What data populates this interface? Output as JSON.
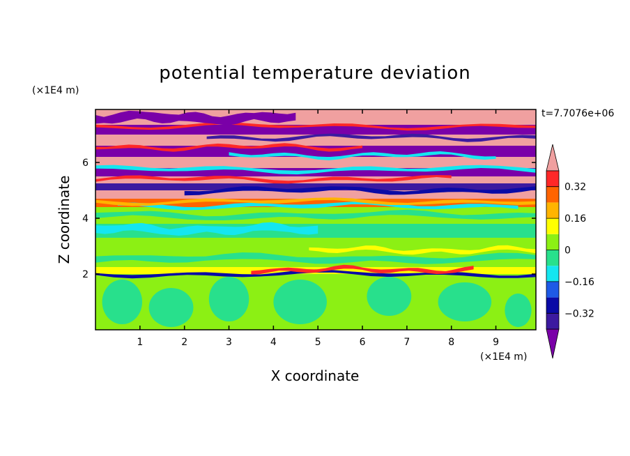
{
  "chart_data": {
    "type": "heatmap",
    "title": "potential temperature deviation",
    "xlabel": "X coordinate",
    "ylabel": "Z coordinate",
    "x_unit": "(×1E4 m)",
    "y_unit": "(×1E4 m)",
    "time_label": "t=7.7076e+06",
    "xlim": [
      0,
      9.9
    ],
    "ylim": [
      0,
      7.9
    ],
    "x_ticks": [
      1,
      2,
      3,
      4,
      5,
      6,
      7,
      8,
      9
    ],
    "y_ticks": [
      2,
      4,
      6
    ],
    "grid": false,
    "colorbar": {
      "extend": "both",
      "levels": [
        -0.4,
        -0.32,
        -0.24,
        -0.16,
        -0.08,
        0,
        0.08,
        0.16,
        0.24,
        0.32,
        0.4
      ],
      "colors": [
        "#7a00a8",
        "#3c1aa0",
        "#0a0aa6",
        "#1e5ae6",
        "#14e6f0",
        "#28e08c",
        "#8cf014",
        "#ffff00",
        "#ffb400",
        "#ff6400",
        "#ff2828",
        "#f0a0a0"
      ],
      "tick_labels": [
        "0.32",
        "0.16",
        "0",
        "−0.16",
        "−0.32"
      ],
      "tick_values": [
        0.32,
        0.16,
        0,
        -0.16,
        -0.32
      ]
    },
    "bands": [
      {
        "z0": 0.0,
        "z1": 2.0,
        "color": "#8cf014"
      },
      {
        "z0": 2.0,
        "z1": 2.25,
        "color": "#ffff00"
      },
      {
        "z0": 2.25,
        "z1": 3.3,
        "color": "#8cf014"
      },
      {
        "z0": 3.3,
        "z1": 3.8,
        "color": "#28e08c"
      },
      {
        "z0": 3.8,
        "z1": 4.4,
        "color": "#8cf014"
      },
      {
        "z0": 4.4,
        "z1": 4.7,
        "color": "#ff6400"
      },
      {
        "z0": 4.7,
        "z1": 5.0,
        "color": "#f0a0a0"
      },
      {
        "z0": 5.0,
        "z1": 5.25,
        "color": "#3c1aa0"
      },
      {
        "z0": 5.25,
        "z1": 5.5,
        "color": "#f0a0a0"
      },
      {
        "z0": 5.5,
        "z1": 5.8,
        "color": "#7a00a8"
      },
      {
        "z0": 5.8,
        "z1": 6.2,
        "color": "#f0a0a0"
      },
      {
        "z0": 6.2,
        "z1": 6.6,
        "color": "#7a00a8"
      },
      {
        "z0": 6.6,
        "z1": 7.0,
        "color": "#f0a0a0"
      },
      {
        "z0": 7.0,
        "z1": 7.35,
        "color": "#7a00a8"
      },
      {
        "z0": 7.35,
        "z1": 7.9,
        "color": "#f0a0a0"
      }
    ],
    "streaks": [
      {
        "x0": 0.0,
        "x1": 9.9,
        "z": 2.0,
        "dz": 0.06,
        "color": "#0a0aa6"
      },
      {
        "x0": 3.5,
        "x1": 8.5,
        "z": 2.15,
        "dz": 0.07,
        "color": "#ff2828"
      },
      {
        "x0": 0.0,
        "x1": 9.9,
        "z": 2.55,
        "dz": 0.12,
        "color": "#28e08c"
      },
      {
        "x0": 4.8,
        "x1": 9.9,
        "z": 2.85,
        "dz": 0.08,
        "color": "#ffff00"
      },
      {
        "x0": 0.0,
        "x1": 5.0,
        "z": 3.6,
        "dz": 0.15,
        "color": "#14e6f0"
      },
      {
        "x0": 0.0,
        "x1": 9.9,
        "z": 4.1,
        "dz": 0.1,
        "color": "#28e08c"
      },
      {
        "x0": 0.5,
        "x1": 9.5,
        "z": 4.45,
        "dz": 0.07,
        "color": "#14e6f0"
      },
      {
        "x0": 0.0,
        "x1": 9.9,
        "z": 4.6,
        "dz": 0.06,
        "color": "#ffb400"
      },
      {
        "x0": 2.0,
        "x1": 9.9,
        "z": 5.0,
        "dz": 0.08,
        "color": "#0a0aa6"
      },
      {
        "x0": 0.0,
        "x1": 8.0,
        "z": 5.4,
        "dz": 0.06,
        "color": "#ff2828"
      },
      {
        "x0": 0.0,
        "x1": 9.9,
        "z": 5.75,
        "dz": 0.07,
        "color": "#14e6f0"
      },
      {
        "x0": 3.0,
        "x1": 9.0,
        "z": 6.25,
        "dz": 0.06,
        "color": "#14e6f0"
      },
      {
        "x0": 0.0,
        "x1": 6.0,
        "z": 6.55,
        "dz": 0.06,
        "color": "#ff2828"
      },
      {
        "x0": 2.5,
        "x1": 9.9,
        "z": 6.9,
        "dz": 0.06,
        "color": "#3c1aa0"
      },
      {
        "x0": 0.0,
        "x1": 9.9,
        "z": 7.3,
        "dz": 0.05,
        "color": "#ff2828"
      },
      {
        "x0": 0.0,
        "x1": 4.5,
        "z": 7.6,
        "dz": 0.18,
        "color": "#7a00a8"
      }
    ],
    "blobs": [
      {
        "x": 0.6,
        "z": 1.0,
        "rx": 0.45,
        "rz": 0.8,
        "color": "#28e08c"
      },
      {
        "x": 1.7,
        "z": 0.8,
        "rx": 0.5,
        "rz": 0.7,
        "color": "#28e08c"
      },
      {
        "x": 3.0,
        "z": 1.1,
        "rx": 0.45,
        "rz": 0.8,
        "color": "#28e08c"
      },
      {
        "x": 4.6,
        "z": 1.0,
        "rx": 0.6,
        "rz": 0.8,
        "color": "#28e08c"
      },
      {
        "x": 6.6,
        "z": 1.2,
        "rx": 0.5,
        "rz": 0.7,
        "color": "#28e08c"
      },
      {
        "x": 8.3,
        "z": 1.0,
        "rx": 0.6,
        "rz": 0.7,
        "color": "#28e08c"
      },
      {
        "x": 9.5,
        "z": 0.7,
        "rx": 0.3,
        "rz": 0.6,
        "color": "#28e08c"
      }
    ]
  }
}
